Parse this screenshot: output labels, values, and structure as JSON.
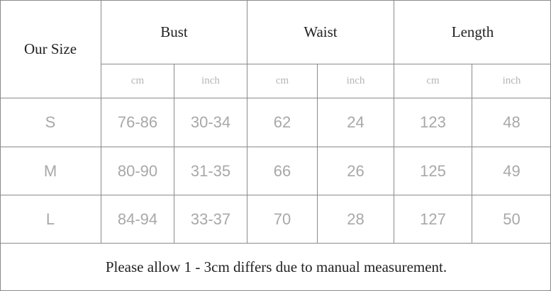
{
  "table": {
    "header": {
      "size_label": "Our Size",
      "groups": [
        "Bust",
        "Waist",
        "Length"
      ],
      "units": [
        "cm",
        "inch",
        "cm",
        "inch",
        "cm",
        "inch"
      ]
    },
    "rows": [
      [
        "S",
        "76-86",
        "30-34",
        "62",
        "24",
        "123",
        "48"
      ],
      [
        "M",
        "80-90",
        "31-35",
        "66",
        "26",
        "125",
        "49"
      ],
      [
        "L",
        "84-94",
        "33-37",
        "70",
        "28",
        "127",
        "50"
      ]
    ],
    "note": "Please allow 1 - 3cm differs due to manual measurement."
  }
}
